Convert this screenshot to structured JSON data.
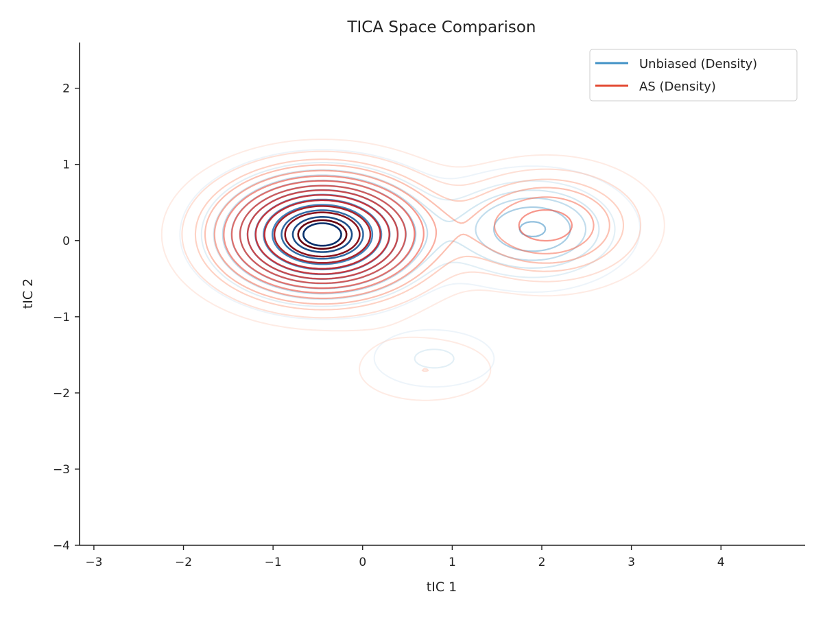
{
  "chart_data": {
    "type": "contour",
    "title": "TICA Space Comparison",
    "xlabel": "tIC 1",
    "ylabel": "tIC 2",
    "xlim": [
      -3.16,
      4.94
    ],
    "ylim": [
      -4.0,
      2.6
    ],
    "xticks": [
      -3,
      -2,
      -1,
      0,
      1,
      2,
      3,
      4
    ],
    "yticks": [
      -4,
      -3,
      -2,
      -1,
      0,
      1,
      2
    ],
    "xtick_labels": [
      "−3",
      "−2",
      "−1",
      "0",
      "1",
      "2",
      "3",
      "4"
    ],
    "ytick_labels": [
      "−4",
      "−3",
      "−2",
      "−1",
      "0",
      "1",
      "2"
    ],
    "grid": false,
    "legend_position": "top-right",
    "series": [
      {
        "name": "Unbiased (Density)",
        "color": "#4292c6",
        "colormap": "Blues",
        "density_components": [
          {
            "weight": 1.0,
            "mu": [
              -0.45,
              0.08
            ],
            "sigma": [
              0.6,
              0.42
            ]
          },
          {
            "weight": 0.32,
            "mu": [
              1.9,
              0.15
            ],
            "sigma": [
              0.55,
              0.38
            ]
          },
          {
            "weight": 0.09,
            "mu": [
              0.8,
              -1.55
            ],
            "sigma": [
              0.45,
              0.25
            ]
          }
        ],
        "levels": [
          0.03,
          0.08,
          0.13,
          0.18,
          0.24,
          0.31,
          0.38,
          0.46,
          0.55,
          0.65,
          0.75,
          0.86,
          0.94
        ]
      },
      {
        "name": "AS (Density)",
        "color": "#e34a33",
        "colormap": "Reds",
        "density_components": [
          {
            "weight": 1.0,
            "mu": [
              -0.45,
              0.08
            ],
            "sigma": [
              0.66,
              0.46
            ]
          },
          {
            "weight": 0.28,
            "mu": [
              2.05,
              0.2
            ],
            "sigma": [
              0.6,
              0.42
            ]
          },
          {
            "weight": 0.06,
            "mu": [
              0.7,
              -1.7
            ],
            "sigma": [
              0.55,
              0.3
            ]
          }
        ],
        "levels": [
          0.025,
          0.06,
          0.1,
          0.14,
          0.19,
          0.25,
          0.31,
          0.38,
          0.45,
          0.53,
          0.62,
          0.72,
          0.82,
          0.92
        ]
      }
    ]
  }
}
